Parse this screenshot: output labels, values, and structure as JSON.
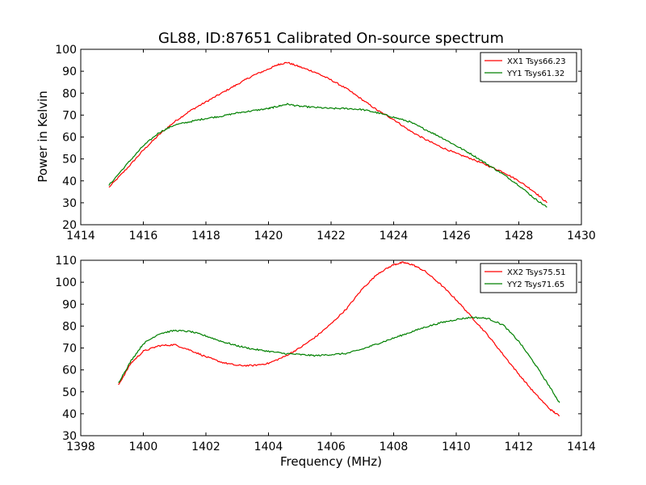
{
  "figure": {
    "title": "GL88, ID:87651 Calibrated On-source spectrum",
    "xlabel": "Frequency (MHz)",
    "ylabel": "Power in Kelvin"
  },
  "chart_data": [
    {
      "type": "line",
      "title": "GL88, ID:87651 Calibrated On-source spectrum",
      "xlabel": "",
      "ylabel": "Power in Kelvin",
      "xlim": [
        1414,
        1430
      ],
      "ylim": [
        20,
        100
      ],
      "xticks": [
        1414,
        1416,
        1418,
        1420,
        1422,
        1424,
        1426,
        1428,
        1430
      ],
      "yticks": [
        20,
        30,
        40,
        50,
        60,
        70,
        80,
        90,
        100
      ],
      "legend_position": "top-right",
      "series": [
        {
          "name": "XX1 Tsys66.23",
          "color": "#ff0000",
          "x": [
            1414.9,
            1415.5,
            1416.0,
            1416.5,
            1417.0,
            1417.5,
            1418.0,
            1418.5,
            1419.0,
            1419.5,
            1420.0,
            1420.3,
            1420.6,
            1421.0,
            1421.5,
            1422.0,
            1422.5,
            1423.0,
            1423.5,
            1424.0,
            1424.5,
            1425.0,
            1425.5,
            1426.0,
            1426.5,
            1427.0,
            1427.5,
            1428.0,
            1428.5,
            1428.9
          ],
          "y": [
            37,
            46,
            54,
            61,
            67,
            72,
            76,
            80,
            84,
            88,
            91,
            93,
            94,
            92,
            89.5,
            86,
            82,
            77,
            72,
            68,
            63,
            59,
            55.5,
            52.5,
            50,
            47,
            44,
            40,
            35,
            30
          ]
        },
        {
          "name": "YY1 Tsys61.32",
          "color": "#008000",
          "x": [
            1414.9,
            1415.5,
            1416.0,
            1416.5,
            1417.0,
            1417.5,
            1418.0,
            1418.5,
            1419.0,
            1419.5,
            1420.0,
            1420.3,
            1420.6,
            1421.0,
            1421.5,
            1422.0,
            1422.5,
            1423.0,
            1423.5,
            1424.0,
            1424.5,
            1425.0,
            1425.5,
            1426.0,
            1426.5,
            1427.0,
            1427.5,
            1428.0,
            1428.5,
            1428.9
          ],
          "y": [
            38,
            48,
            56,
            62,
            65.5,
            67,
            68.5,
            69.5,
            71,
            72,
            73,
            74,
            75,
            74,
            73.5,
            73,
            73,
            72.5,
            71,
            69,
            67,
            63.5,
            60,
            56,
            52,
            47.5,
            43,
            38,
            32,
            28
          ]
        }
      ]
    },
    {
      "type": "line",
      "title": "",
      "xlabel": "Frequency (MHz)",
      "ylabel": "",
      "xlim": [
        1398,
        1414
      ],
      "ylim": [
        30,
        110
      ],
      "xticks": [
        1398,
        1400,
        1402,
        1404,
        1406,
        1408,
        1410,
        1412,
        1414
      ],
      "yticks": [
        30,
        40,
        50,
        60,
        70,
        80,
        90,
        100,
        110
      ],
      "legend_position": "top-right",
      "series": [
        {
          "name": "XX2 Tsys75.51",
          "color": "#ff0000",
          "x": [
            1399.2,
            1399.6,
            1400.0,
            1400.5,
            1401.0,
            1401.5,
            1402.0,
            1402.5,
            1403.0,
            1403.5,
            1404.0,
            1404.5,
            1405.0,
            1405.5,
            1406.0,
            1406.5,
            1407.0,
            1407.5,
            1408.0,
            1408.3,
            1408.6,
            1409.0,
            1409.5,
            1410.0,
            1410.5,
            1411.0,
            1411.5,
            1412.0,
            1412.5,
            1413.0,
            1413.3
          ],
          "y": [
            53,
            63,
            68.5,
            71,
            71.5,
            69,
            66,
            63.5,
            62,
            62,
            63,
            66,
            70,
            75,
            81,
            88,
            97,
            104,
            108,
            109,
            108,
            105,
            99,
            92,
            84,
            76,
            67,
            58,
            49.5,
            42,
            39
          ]
        },
        {
          "name": "YY2 Tsys71.65",
          "color": "#008000",
          "x": [
            1399.2,
            1399.6,
            1400.0,
            1400.5,
            1401.0,
            1401.5,
            1402.0,
            1402.5,
            1403.0,
            1403.5,
            1404.0,
            1404.5,
            1405.0,
            1405.5,
            1406.0,
            1406.5,
            1407.0,
            1407.5,
            1408.0,
            1408.5,
            1409.0,
            1409.5,
            1410.0,
            1410.5,
            1411.0,
            1411.5,
            1412.0,
            1412.5,
            1413.0,
            1413.3
          ],
          "y": [
            54,
            64,
            72,
            76.5,
            78,
            77.5,
            75.5,
            73,
            71,
            69.5,
            68.5,
            67.5,
            67,
            66.5,
            67,
            67.5,
            69.5,
            72,
            74.5,
            77,
            79.5,
            81.5,
            83,
            84,
            83.5,
            80.5,
            73,
            63,
            52,
            45
          ]
        }
      ]
    }
  ]
}
